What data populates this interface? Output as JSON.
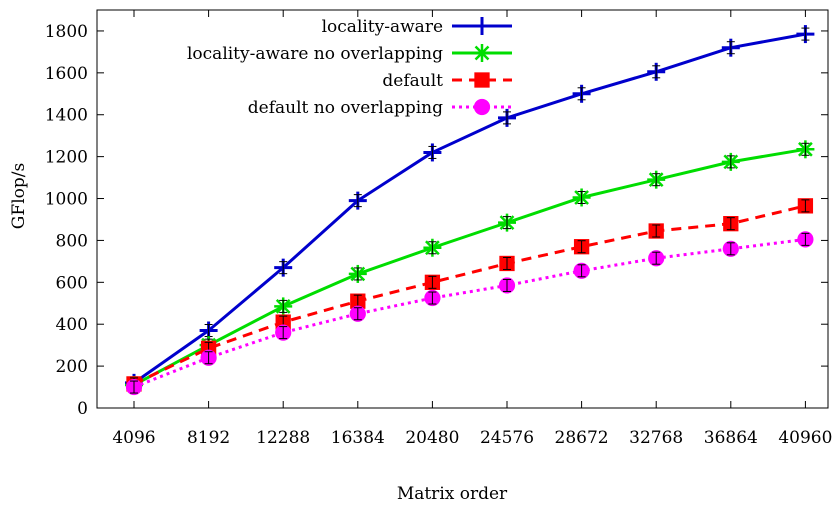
{
  "chart_data": {
    "type": "line",
    "title": "",
    "xlabel": "Matrix order",
    "ylabel": "GFlop/s",
    "categories": [
      "4096",
      "8192",
      "12288",
      "16384",
      "20480",
      "24576",
      "28672",
      "32768",
      "36864",
      "40960"
    ],
    "ylim": [
      0,
      1900
    ],
    "yticks": [
      0,
      200,
      400,
      600,
      800,
      1000,
      1200,
      1400,
      1600,
      1800
    ],
    "grid": false,
    "legend_position": "top-right",
    "error_bars": true,
    "series": [
      {
        "name": "locality-aware",
        "color": "#0000cc",
        "line_style": "solid",
        "marker": "plus",
        "values": [
          120,
          370,
          670,
          990,
          1220,
          1385,
          1500,
          1605,
          1720,
          1785
        ]
      },
      {
        "name": "locality-aware no overlapping",
        "color": "#00dd00",
        "line_style": "solid",
        "marker": "asterisk",
        "values": [
          110,
          300,
          485,
          640,
          765,
          885,
          1005,
          1090,
          1175,
          1235
        ]
      },
      {
        "name": "default",
        "color": "#ff0000",
        "line_style": "dashed",
        "marker": "square",
        "values": [
          115,
          285,
          410,
          510,
          600,
          690,
          770,
          845,
          880,
          965
        ]
      },
      {
        "name": "default no overlapping",
        "color": "#ff00ff",
        "line_style": "dotted",
        "marker": "circle",
        "values": [
          100,
          240,
          360,
          450,
          525,
          585,
          655,
          715,
          760,
          805
        ]
      }
    ]
  }
}
